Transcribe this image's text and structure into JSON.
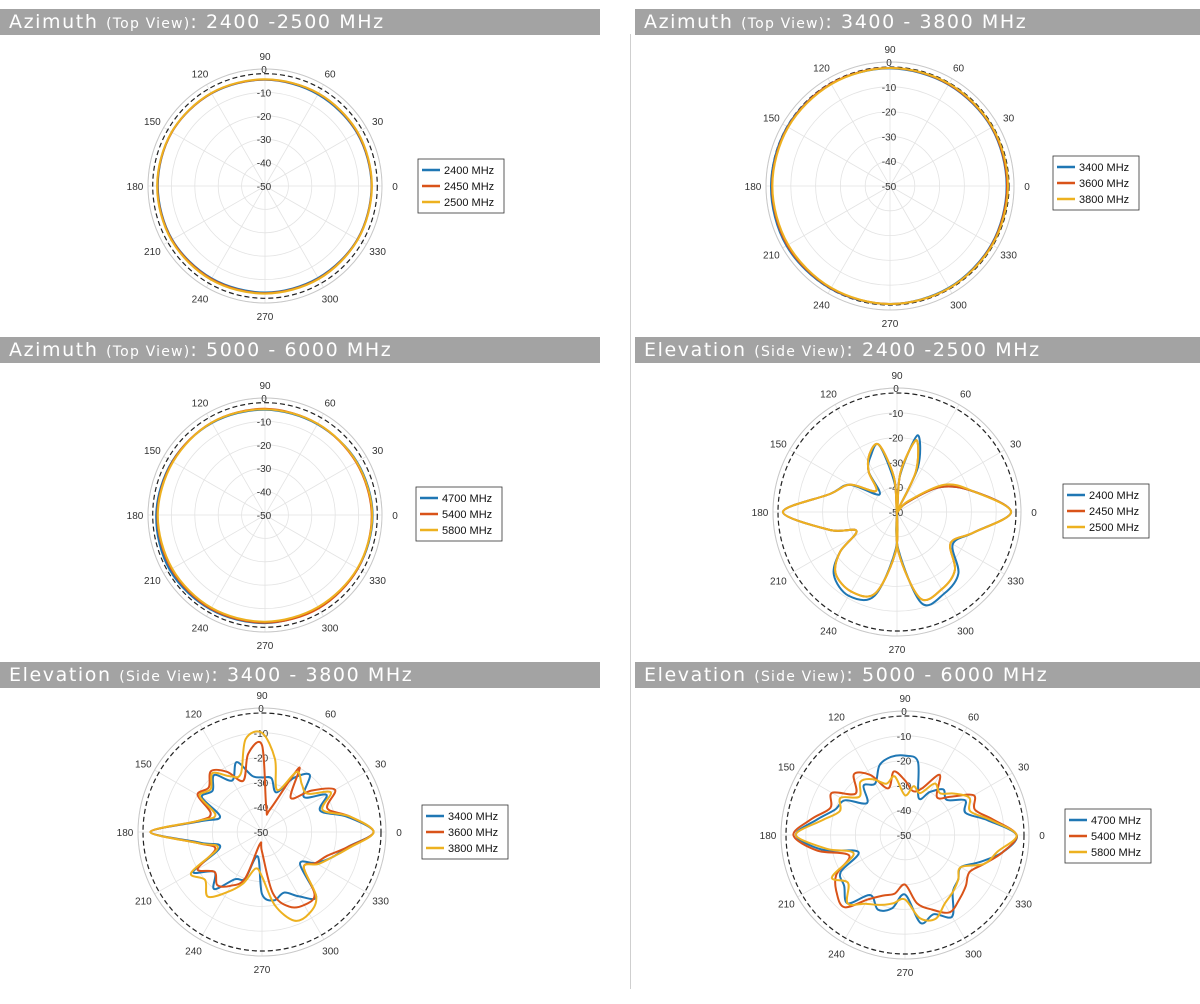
{
  "colors": {
    "header_bg": "#a3a3a3",
    "series": [
      "#1f77b4",
      "#d95319",
      "#edb120"
    ]
  },
  "polar_common": {
    "angle_labels": [
      "0",
      "30",
      "60",
      "90",
      "120",
      "150",
      "180",
      "210",
      "240",
      "270",
      "300",
      "330"
    ],
    "radial_labels": [
      "0",
      "-10",
      "-20",
      "-30",
      "-40",
      "-50"
    ]
  },
  "chart_data": [
    {
      "type": "polar-line",
      "title_main": "Azimuth ",
      "title_paren": "(Top View)",
      "title_tail": ": 2400 -2500 MHz",
      "rlim": [
        -50,
        0
      ],
      "ref_circle_db": -2,
      "legend": [
        "2400 MHz",
        "2450 MHz",
        "2500 MHz"
      ],
      "series": [
        {
          "name": "2400 MHz",
          "theta_deg": [
            0,
            30,
            60,
            90,
            120,
            150,
            180,
            210,
            240,
            270,
            300,
            330
          ],
          "r_db": [
            -4.5,
            -4.6,
            -4.8,
            -4.6,
            -4.3,
            -4.0,
            -4.2,
            -4.2,
            -4.4,
            -4.5,
            -4.6,
            -4.4
          ]
        },
        {
          "name": "2450 MHz",
          "theta_deg": [
            0,
            30,
            60,
            90,
            120,
            150,
            180,
            210,
            240,
            270,
            300,
            330
          ],
          "r_db": [
            -4.4,
            -4.4,
            -4.4,
            -4.5,
            -4.2,
            -4.0,
            -4.0,
            -4.0,
            -4.1,
            -4.2,
            -4.3,
            -4.3
          ]
        },
        {
          "name": "2500 MHz",
          "theta_deg": [
            0,
            30,
            60,
            90,
            120,
            150,
            180,
            210,
            240,
            270,
            300,
            330
          ],
          "r_db": [
            -4.3,
            -4.2,
            -4.3,
            -4.4,
            -4.1,
            -3.9,
            -3.9,
            -3.8,
            -3.8,
            -4.0,
            -4.1,
            -4.2
          ]
        }
      ]
    },
    {
      "type": "polar-line",
      "title_main": "Azimuth ",
      "title_paren": "(Top View)",
      "title_tail": ": 3400 - 3800 MHz",
      "rlim": [
        -50,
        0
      ],
      "ref_circle_db": -2,
      "legend": [
        "3400 MHz",
        "3600 MHz",
        "3800 MHz"
      ],
      "series": [
        {
          "name": "3400 MHz",
          "theta_deg": [
            0,
            30,
            60,
            90,
            120,
            150,
            180,
            210,
            240,
            270,
            300,
            330
          ],
          "r_db": [
            -3.0,
            -2.8,
            -2.8,
            -2.6,
            -2.4,
            -2.2,
            -2.0,
            -1.8,
            -2.2,
            -2.4,
            -2.6,
            -2.8
          ]
        },
        {
          "name": "3600 MHz",
          "theta_deg": [
            0,
            30,
            60,
            90,
            120,
            150,
            180,
            210,
            240,
            270,
            300,
            330
          ],
          "r_db": [
            -2.8,
            -2.6,
            -2.6,
            -2.4,
            -2.4,
            -2.4,
            -2.4,
            -2.2,
            -2.4,
            -2.4,
            -2.4,
            -2.6
          ]
        },
        {
          "name": "3800 MHz",
          "theta_deg": [
            0,
            30,
            60,
            90,
            120,
            150,
            180,
            210,
            240,
            270,
            300,
            330
          ],
          "r_db": [
            -2.4,
            -2.4,
            -2.4,
            -2.4,
            -2.6,
            -2.6,
            -2.6,
            -2.6,
            -2.6,
            -2.4,
            -2.4,
            -2.4
          ]
        }
      ]
    },
    {
      "type": "polar-line",
      "title_main": "Azimuth ",
      "title_paren": "(Top View)",
      "title_tail": ": 5000 - 6000 MHz",
      "rlim": [
        -50,
        0
      ],
      "ref_circle_db": -2,
      "legend": [
        "4700 MHz",
        "5400 MHz",
        "5800 MHz"
      ],
      "series": [
        {
          "name": "4700 MHz",
          "theta_deg": [
            0,
            30,
            60,
            90,
            120,
            150,
            180,
            210,
            240,
            270,
            300,
            330
          ],
          "r_db": [
            -4.0,
            -4.6,
            -5.2,
            -5.0,
            -4.6,
            -4.2,
            -3.5,
            -3.0,
            -3.4,
            -3.8,
            -4.4,
            -4.2
          ]
        },
        {
          "name": "5400 MHz",
          "theta_deg": [
            0,
            30,
            60,
            90,
            120,
            150,
            180,
            210,
            240,
            270,
            300,
            330
          ],
          "r_db": [
            -4.4,
            -5.0,
            -5.0,
            -4.6,
            -4.4,
            -4.4,
            -4.0,
            -3.8,
            -3.8,
            -4.0,
            -4.0,
            -4.2
          ]
        },
        {
          "name": "5800 MHz",
          "theta_deg": [
            0,
            30,
            60,
            90,
            120,
            150,
            180,
            210,
            240,
            270,
            300,
            330
          ],
          "r_db": [
            -4.2,
            -4.8,
            -5.0,
            -4.8,
            -4.4,
            -4.6,
            -4.2,
            -4.2,
            -4.2,
            -4.4,
            -4.6,
            -4.4
          ]
        }
      ]
    },
    {
      "type": "polar-line",
      "title_main": "Elevation ",
      "title_paren": "(Side View)",
      "title_tail": ": 2400 -2500 MHz",
      "rlim": [
        -50,
        0
      ],
      "ref_circle_db": -2,
      "legend": [
        "2400 MHz",
        "2450 MHz",
        "2500 MHz"
      ],
      "series": [
        {
          "name": "2400 MHz",
          "theta_deg": [
            0,
            15,
            30,
            45,
            55,
            65,
            75,
            85,
            90,
            95,
            105,
            115,
            125,
            135,
            150,
            165,
            180,
            195,
            205,
            215,
            225,
            240,
            255,
            268,
            270,
            272,
            285,
            300,
            315,
            330,
            345
          ],
          "r_db": [
            -4,
            -18,
            -30,
            -45,
            -50,
            -30,
            -18,
            -35,
            -50,
            -38,
            -22,
            -25,
            -30,
            -40,
            -28,
            -22,
            -4,
            -22,
            -32,
            -22,
            -14,
            -11,
            -15,
            -35,
            -50,
            -35,
            -12,
            -12,
            -15,
            -24,
            -18
          ]
        },
        {
          "name": "2450 MHz",
          "theta_deg": [
            0,
            15,
            30,
            45,
            55,
            65,
            75,
            85,
            90,
            95,
            105,
            115,
            125,
            135,
            150,
            165,
            180,
            195,
            205,
            215,
            225,
            240,
            255,
            268,
            270,
            272,
            285,
            300,
            315,
            330,
            345
          ],
          "r_db": [
            -4,
            -18,
            -30,
            -45,
            -50,
            -32,
            -20,
            -34,
            -50,
            -36,
            -22,
            -24,
            -30,
            -38,
            -28,
            -22,
            -4,
            -22,
            -32,
            -22,
            -15,
            -13,
            -16,
            -34,
            -50,
            -34,
            -14,
            -14,
            -17,
            -25,
            -18
          ]
        },
        {
          "name": "2500 MHz",
          "theta_deg": [
            0,
            15,
            30,
            45,
            55,
            65,
            75,
            85,
            90,
            95,
            105,
            115,
            125,
            135,
            150,
            165,
            180,
            195,
            205,
            215,
            225,
            240,
            255,
            268,
            270,
            272,
            285,
            300,
            315,
            330,
            345
          ],
          "r_db": [
            -4,
            -18,
            -28,
            -44,
            -50,
            -32,
            -20,
            -34,
            -50,
            -36,
            -22,
            -24,
            -30,
            -38,
            -28,
            -22,
            -4,
            -22,
            -32,
            -22,
            -15,
            -13,
            -16,
            -34,
            -50,
            -34,
            -14,
            -14,
            -17,
            -25,
            -18
          ]
        }
      ]
    },
    {
      "type": "polar-line",
      "title_main": "Elevation ",
      "title_paren": "(Side View)",
      "title_tail": ": 3400 - 3800 MHz",
      "rlim": [
        -50,
        0
      ],
      "ref_circle_db": -2,
      "legend": [
        "3400 MHz",
        "3600 MHz",
        "3800 MHz"
      ],
      "series": [
        {
          "name": "3400 MHz",
          "theta_deg": [
            0,
            10,
            20,
            30,
            40,
            50,
            60,
            70,
            80,
            90,
            100,
            110,
            120,
            130,
            140,
            150,
            160,
            170,
            180,
            190,
            200,
            210,
            220,
            230,
            240,
            250,
            260,
            270,
            280,
            290,
            300,
            310,
            320,
            330,
            340,
            350
          ],
          "r_db": [
            -5,
            -15,
            -25,
            -20,
            -28,
            -20,
            -25,
            -33,
            -28,
            -28,
            -27,
            -20,
            -26,
            -20,
            -24,
            -22,
            -32,
            -25,
            -5,
            -25,
            -32,
            -18,
            -25,
            -20,
            -28,
            -30,
            -40,
            -25,
            -22,
            -24,
            -20,
            -16,
            -30,
            -25,
            -20,
            -15
          ]
        },
        {
          "name": "3600 MHz",
          "theta_deg": [
            0,
            10,
            20,
            30,
            40,
            50,
            60,
            70,
            80,
            90,
            100,
            110,
            120,
            130,
            140,
            150,
            160,
            170,
            180,
            190,
            200,
            210,
            220,
            230,
            240,
            250,
            260,
            270,
            280,
            290,
            300,
            310,
            320,
            330,
            340,
            350
          ],
          "r_db": [
            -5,
            -14,
            -22,
            -16,
            -24,
            -32,
            -20,
            -40,
            -40,
            -15,
            -18,
            -28,
            -22,
            -18,
            -22,
            -20,
            -28,
            -24,
            -5,
            -24,
            -30,
            -20,
            -25,
            -22,
            -25,
            -30,
            -45,
            -42,
            -25,
            -18,
            -16,
            -17,
            -28,
            -25,
            -22,
            -15
          ]
        },
        {
          "name": "3800 MHz",
          "theta_deg": [
            0,
            10,
            20,
            30,
            40,
            50,
            60,
            70,
            80,
            90,
            100,
            110,
            120,
            130,
            140,
            150,
            160,
            170,
            180,
            190,
            200,
            210,
            220,
            230,
            240,
            250,
            260,
            270,
            280,
            290,
            300,
            310,
            320,
            330,
            340,
            350
          ],
          "r_db": [
            -5,
            -14,
            -24,
            -18,
            -26,
            -25,
            -22,
            -32,
            -20,
            -10,
            -12,
            -25,
            -24,
            -19,
            -23,
            -21,
            -30,
            -24,
            -5,
            -24,
            -31,
            -17,
            -20,
            -16,
            -22,
            -28,
            -35,
            -32,
            -20,
            -12,
            -12,
            -16,
            -28,
            -24,
            -20,
            -14
          ]
        }
      ]
    },
    {
      "type": "polar-line",
      "title_main": "Elevation ",
      "title_paren": "(Side View)",
      "title_tail": ": 5000 - 6000 MHz",
      "rlim": [
        -50,
        0
      ],
      "ref_circle_db": -2,
      "legend": [
        "4700 MHz",
        "5400 MHz",
        "5800 MHz"
      ],
      "series": [
        {
          "name": "4700 MHz",
          "theta_deg": [
            0,
            10,
            20,
            30,
            40,
            50,
            60,
            70,
            80,
            90,
            100,
            110,
            120,
            130,
            140,
            150,
            160,
            170,
            180,
            190,
            200,
            210,
            220,
            230,
            240,
            250,
            260,
            270,
            280,
            290,
            300,
            310,
            320,
            330,
            340,
            350
          ],
          "r_db": [
            -5,
            -16,
            -24,
            -22,
            -28,
            -26,
            -30,
            -34,
            -20,
            -18,
            -18,
            -20,
            -26,
            -24,
            -30,
            -22,
            -20,
            -14,
            -6,
            -16,
            -30,
            -20,
            -18,
            -14,
            -22,
            -18,
            -20,
            -26,
            -14,
            -16,
            -12,
            -20,
            -22,
            -24,
            -18,
            -10
          ]
        },
        {
          "name": "5400 MHz",
          "theta_deg": [
            0,
            10,
            20,
            30,
            40,
            50,
            60,
            70,
            80,
            90,
            100,
            110,
            120,
            130,
            140,
            150,
            160,
            170,
            180,
            190,
            200,
            210,
            220,
            230,
            240,
            250,
            260,
            270,
            280,
            290,
            300,
            310,
            320,
            330,
            340,
            350
          ],
          "r_db": [
            -5,
            -14,
            -20,
            -18,
            -26,
            -30,
            -22,
            -30,
            -32,
            -28,
            -24,
            -30,
            -22,
            -18,
            -24,
            -16,
            -18,
            -12,
            -5,
            -14,
            -26,
            -18,
            -14,
            -12,
            -20,
            -24,
            -26,
            -30,
            -22,
            -18,
            -14,
            -16,
            -18,
            -20,
            -16,
            -10
          ]
        },
        {
          "name": "5800 MHz",
          "theta_deg": [
            0,
            10,
            20,
            30,
            40,
            50,
            60,
            70,
            80,
            90,
            100,
            110,
            120,
            130,
            140,
            150,
            160,
            170,
            180,
            190,
            200,
            210,
            220,
            230,
            240,
            250,
            260,
            270,
            280,
            290,
            300,
            310,
            320,
            330,
            340,
            350
          ],
          "r_db": [
            -5,
            -15,
            -22,
            -20,
            -24,
            -28,
            -26,
            -32,
            -30,
            -34,
            -26,
            -28,
            -24,
            -22,
            -26,
            -20,
            -22,
            -16,
            -6,
            -18,
            -28,
            -16,
            -20,
            -14,
            -18,
            -20,
            -22,
            -24,
            -16,
            -14,
            -18,
            -20,
            -22,
            -24,
            -16,
            -12
          ]
        }
      ]
    }
  ]
}
